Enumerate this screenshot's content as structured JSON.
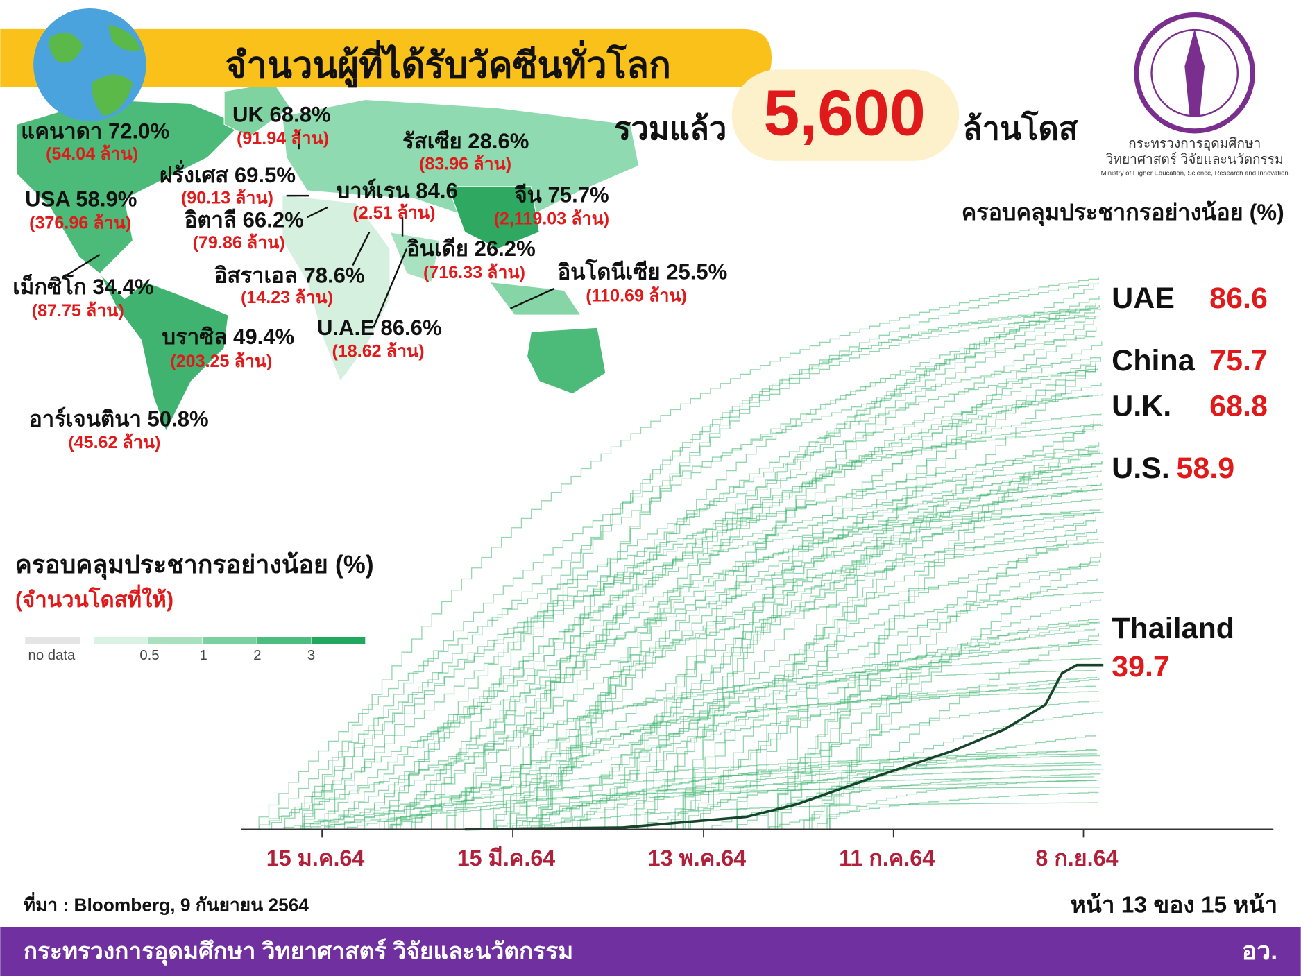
{
  "header": {
    "title": "จำนวนผู้ที่ได้รับวัคซีนทั่วโลก",
    "total_prefix": "รวมแล้ว",
    "total": "5,600",
    "total_suffix": "ล้านโดส"
  },
  "logo": {
    "line1": "กระทรวงการอุดมศึกษา",
    "line2": "วิทยาศาสตร์ วิจัยและนวัตกรรม",
    "line3": "Ministry of Higher Education, Science, Research and Innovation"
  },
  "map": {
    "countries": [
      {
        "name": "แคนาดา 72.0%",
        "doses": "(54.04 ล้าน)"
      },
      {
        "name": "UK 68.8%",
        "doses": "(91.94 ล้าน)"
      },
      {
        "name": "รัสเซีย 28.6%",
        "doses": "(83.96 ล้าน)"
      },
      {
        "name": "ฝรั่งเศส 69.5%",
        "doses": "(90.13 ล้าน)"
      },
      {
        "name": "USA 58.9%",
        "doses": "(376.96 ล้าน)"
      },
      {
        "name": "บาห์เรน 84.6",
        "doses": "(2.51 ล้าน)"
      },
      {
        "name": "จีน 75.7%",
        "doses": "(2,119.03 ล้าน)"
      },
      {
        "name": "อิตาลี 66.2%",
        "doses": "(79.86 ล้าน)"
      },
      {
        "name": "อินเดีย 26.2%",
        "doses": "(716.33 ล้าน)"
      },
      {
        "name": "อิสราเอล 78.6%",
        "doses": "(14.23 ล้าน)"
      },
      {
        "name": "อินโดนีเซีย 25.5%",
        "doses": "(110.69 ล้าน)"
      },
      {
        "name": "เม็กซิโก 34.4%",
        "doses": "(87.75 ล้าน)"
      },
      {
        "name": "U.A.E 86.6%",
        "doses": "(18.62 ล้าน)"
      },
      {
        "name": "บราซิล 49.4%",
        "doses": "(203.25 ล้าน)"
      },
      {
        "name": "อาร์เจนตินา 50.8%",
        "doses": "(45.62 ล้าน)"
      }
    ],
    "legend": {
      "title": "ครอบคลุมประชากรอย่างน้อย (%)",
      "subtitle": "(จำนวนโดสที่ให้)",
      "labels": [
        "no data",
        "0.5",
        "1",
        "2",
        "3"
      ]
    }
  },
  "chart": {
    "title": "ครอบคลุมประชากรอย่างน้อย (%)",
    "x_labels": [
      "15 ม.ค.64",
      "15 มี.ค.64",
      "13 พ.ค.64",
      "11 ก.ค.64",
      "8 ก.ย.64"
    ],
    "highlights": [
      {
        "name": "UAE",
        "value": "86.6"
      },
      {
        "name": "China",
        "value": "75.7"
      },
      {
        "name": "U.K.",
        "value": "68.8"
      },
      {
        "name": "U.S.",
        "value": "58.9"
      },
      {
        "name": "Thailand",
        "value": "39.7"
      }
    ]
  },
  "footer": {
    "source": "ที่มา : Bloomberg, 9 กันยายน 2564",
    "page": "หน้า 13 ของ 15 หน้า",
    "ministry": "กระทรวงการอุดมศึกษา วิทยาศาสตร์ วิจัยและนวัตกรรม",
    "abbr": "อว."
  }
}
